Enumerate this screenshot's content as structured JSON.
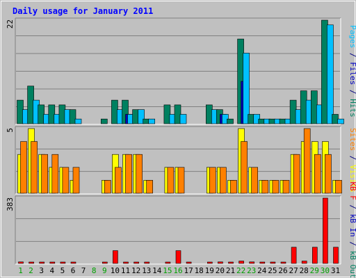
{
  "chart_data": {
    "type": "bar",
    "title": "Daily usage for January 2011",
    "categories": [
      "1",
      "2",
      "3",
      "4",
      "5",
      "6",
      "7",
      "8",
      "9",
      "10",
      "11",
      "12",
      "13",
      "14",
      "15",
      "16",
      "17",
      "18",
      "19",
      "20",
      "21",
      "22",
      "23",
      "24",
      "25",
      "26",
      "27",
      "28",
      "29",
      "30",
      "31"
    ],
    "weekend_days": [
      "1",
      "2",
      "8",
      "9",
      "15",
      "16",
      "22",
      "23",
      "29",
      "30"
    ],
    "panels": [
      {
        "name": "hits_files_pages",
        "ymax_label": "22",
        "ylim": [
          0,
          22
        ],
        "side_label": [
          {
            "text": "Pages",
            "color": "#00c0ff"
          },
          {
            "text": " / ",
            "color": "#000080"
          },
          {
            "text": "Files",
            "color": "#0000c0"
          },
          {
            "text": " / ",
            "color": "#000080"
          },
          {
            "text": "Hits",
            "color": "#008060"
          }
        ],
        "series": [
          {
            "name": "Hits",
            "color": "#008060",
            "values": [
              5,
              8,
              4,
              4,
              4,
              3,
              0,
              0,
              1,
              5,
              5,
              3,
              1,
              0,
              4,
              4,
              0,
              0,
              4,
              3,
              1,
              18,
              2,
              1,
              1,
              1,
              5,
              7,
              7,
              22,
              2
            ]
          },
          {
            "name": "Files",
            "color": "#0000c0",
            "values": [
              0,
              0,
              0,
              0,
              0,
              0,
              0,
              0,
              0,
              0,
              2,
              0,
              0,
              0,
              0,
              0,
              0,
              0,
              0,
              2,
              0,
              9,
              0,
              0,
              0,
              0,
              0,
              0,
              0,
              0,
              0
            ]
          },
          {
            "name": "Pages",
            "color": "#00c0ff",
            "values": [
              3,
              5,
              2,
              2,
              3,
              1,
              0,
              0,
              0,
              3,
              2,
              3,
              1,
              0,
              2,
              2,
              0,
              0,
              3,
              2,
              0,
              15,
              2,
              1,
              1,
              1,
              3,
              5,
              4,
              21,
              1
            ]
          }
        ]
      },
      {
        "name": "visits_sites",
        "ymax_label": "5",
        "ylim": [
          0,
          5
        ],
        "side_label": [
          {
            "text": "Sites",
            "color": "#ff8000"
          },
          {
            "text": " / ",
            "color": "#000080"
          },
          {
            "text": "Visits",
            "color": "#ffff00"
          }
        ],
        "series": [
          {
            "name": "Visits",
            "color": "#ffff00",
            "values": [
              3,
              5,
              3,
              2,
              2,
              1,
              0,
              0,
              1,
              3,
              3,
              3,
              1,
              0,
              2,
              2,
              0,
              0,
              2,
              2,
              1,
              5,
              2,
              1,
              1,
              1,
              3,
              4,
              4,
              4,
              1
            ]
          },
          {
            "name": "Sites",
            "color": "#ff8000",
            "values": [
              4,
              4,
              3,
              3,
              2,
              2,
              0,
              0,
              1,
              2,
              3,
              3,
              1,
              0,
              2,
              2,
              0,
              0,
              2,
              2,
              1,
              4,
              2,
              1,
              1,
              1,
              3,
              5,
              3,
              3,
              1
            ]
          }
        ]
      },
      {
        "name": "kbytes",
        "ymax_label": "383",
        "ylim": [
          0,
          383
        ],
        "side_label": [
          {
            "text": "KB F",
            "color": "#ff0000"
          },
          {
            "text": " / ",
            "color": "#000080"
          },
          {
            "text": "kB In",
            "color": "#0000c0"
          },
          {
            "text": " / ",
            "color": "#000080"
          },
          {
            "text": "kB Out",
            "color": "#008060"
          }
        ],
        "series": [
          {
            "name": "KB F",
            "color": "#ff0000",
            "values": [
              9,
              6,
              6,
              6,
              6,
              6,
              0,
              0,
              6,
              75,
              6,
              6,
              6,
              0,
              6,
              75,
              6,
              0,
              6,
              9,
              6,
              14,
              9,
              6,
              6,
              6,
              95,
              14,
              95,
              383,
              95
            ]
          }
        ]
      }
    ]
  }
}
